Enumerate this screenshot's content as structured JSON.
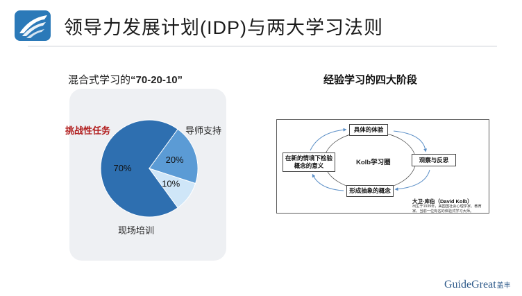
{
  "slide": {
    "title": "领导力发展计划(IDP)与两大学习法则"
  },
  "mixed_learning": {
    "subtitle_prefix": "混合式学习的",
    "subtitle_emphasis": "“70-20-10”",
    "colors": {
      "seventy": "#2e6fb0",
      "twenty": "#5b9bd5",
      "ten": "#cfe6f8",
      "panel": "#eef0f3",
      "challenge_label": "#b11c1c"
    },
    "labels": {
      "challenge": "挑战性任务",
      "mentor": "导师支持",
      "onsite": "现场培训"
    }
  },
  "chart_data": {
    "type": "pie",
    "slices": [
      {
        "name": "挑战性任务",
        "value": 70,
        "label": "70%"
      },
      {
        "name": "导师支持",
        "value": 20,
        "label": "20%"
      },
      {
        "name": "现场培训",
        "value": 10,
        "label": "10%"
      }
    ]
  },
  "kolb": {
    "heading": "经验学习的四大阶段",
    "center": "Kolb学习圈",
    "stages": {
      "top": "具体的体验",
      "right": "观察与反思",
      "bottom": "形成抽象的概念",
      "left": "在新的情境下检验概念的意义"
    },
    "author": "大卫·库伯（David Kolb）",
    "bio": "出生于1939年，美国国社会心理学家、教育家，当前一位有名的体验式学习大师。",
    "arrow_color": "#5b8fc7"
  },
  "brand": {
    "name": "GuideGreat",
    "cn": "盖丰",
    "color": "#2e5a8a"
  }
}
